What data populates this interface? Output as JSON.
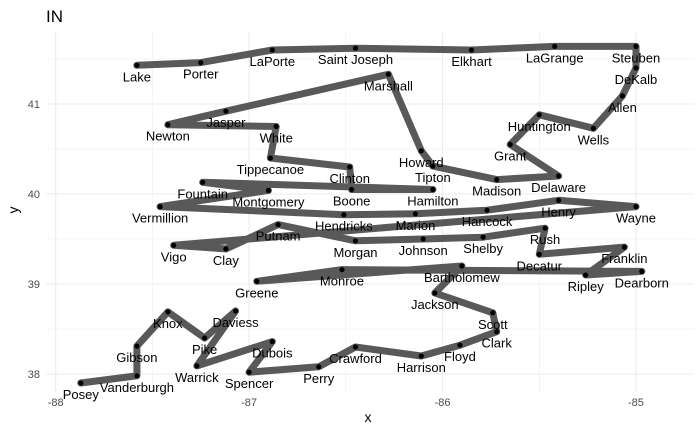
{
  "chart_data": {
    "type": "scatter",
    "title": "IN",
    "xlabel": "x",
    "ylabel": "y",
    "xlim": [
      -88.05,
      -84.7
    ],
    "ylim": [
      37.8,
      41.8
    ],
    "x_ticks": [
      -88,
      -87,
      -86,
      -85
    ],
    "x_tick_labels": [
      "-88",
      "-87",
      "-86",
      "-85"
    ],
    "y_ticks": [
      38,
      39,
      40,
      41
    ],
    "y_tick_labels": [
      "38",
      "39",
      "40",
      "41"
    ],
    "grid": true,
    "colors": {
      "path": "#595959",
      "point": "#000000",
      "grid": "#ebebeb",
      "text": "#000000",
      "tick": "#4d4d4d"
    },
    "points": [
      {
        "name": "Lake",
        "x": -87.58,
        "y": 41.43
      },
      {
        "name": "Porter",
        "x": -87.25,
        "y": 41.46
      },
      {
        "name": "LaPorte",
        "x": -86.88,
        "y": 41.6
      },
      {
        "name": "Saint Joseph",
        "x": -86.45,
        "y": 41.62
      },
      {
        "name": "Elkhart",
        "x": -85.85,
        "y": 41.6
      },
      {
        "name": "LaGrange",
        "x": -85.42,
        "y": 41.64
      },
      {
        "name": "Steuben",
        "x": -85.0,
        "y": 41.64
      },
      {
        "name": "DeKalb",
        "x": -85.0,
        "y": 41.4
      },
      {
        "name": "Allen",
        "x": -85.07,
        "y": 41.09
      },
      {
        "name": "Wells",
        "x": -85.22,
        "y": 40.73
      },
      {
        "name": "Huntington",
        "x": -85.5,
        "y": 40.88
      },
      {
        "name": "Grant",
        "x": -85.65,
        "y": 40.55
      },
      {
        "name": "Delaware",
        "x": -85.4,
        "y": 40.2
      },
      {
        "name": "Madison",
        "x": -85.72,
        "y": 40.16
      },
      {
        "name": "Tipton",
        "x": -86.05,
        "y": 40.31
      },
      {
        "name": "Howard",
        "x": -86.11,
        "y": 40.48
      },
      {
        "name": "Marshall",
        "x": -86.28,
        "y": 41.33
      },
      {
        "name": "Jasper",
        "x": -87.12,
        "y": 40.92
      },
      {
        "name": "Newton",
        "x": -87.42,
        "y": 40.77
      },
      {
        "name": "White",
        "x": -86.86,
        "y": 40.75
      },
      {
        "name": "Tippecanoe",
        "x": -86.89,
        "y": 40.4
      },
      {
        "name": "Clinton",
        "x": -86.48,
        "y": 40.3
      },
      {
        "name": "Boone",
        "x": -86.47,
        "y": 40.05
      },
      {
        "name": "Hamilton",
        "x": -86.05,
        "y": 40.05
      },
      {
        "name": "Fountain",
        "x": -87.24,
        "y": 40.13
      },
      {
        "name": "Montgomery",
        "x": -86.9,
        "y": 40.04
      },
      {
        "name": "Vermillion",
        "x": -87.46,
        "y": 39.86
      },
      {
        "name": "Hendricks",
        "x": -86.51,
        "y": 39.77
      },
      {
        "name": "Marion",
        "x": -86.14,
        "y": 39.78
      },
      {
        "name": "Hancock",
        "x": -85.77,
        "y": 39.82
      },
      {
        "name": "Henry",
        "x": -85.4,
        "y": 39.93
      },
      {
        "name": "Wayne",
        "x": -85.0,
        "y": 39.86
      },
      {
        "name": "Vigo",
        "x": -87.39,
        "y": 39.43
      },
      {
        "name": "Clay",
        "x": -87.12,
        "y": 39.39
      },
      {
        "name": "Putnam",
        "x": -86.85,
        "y": 39.66
      },
      {
        "name": "Morgan",
        "x": -86.45,
        "y": 39.48
      },
      {
        "name": "Johnson",
        "x": -86.1,
        "y": 39.5
      },
      {
        "name": "Shelby",
        "x": -85.79,
        "y": 39.52
      },
      {
        "name": "Rush",
        "x": -85.47,
        "y": 39.62
      },
      {
        "name": "Decatur",
        "x": -85.5,
        "y": 39.33
      },
      {
        "name": "Franklin",
        "x": -85.06,
        "y": 39.41
      },
      {
        "name": "Ripley",
        "x": -85.26,
        "y": 39.1
      },
      {
        "name": "Dearborn",
        "x": -84.97,
        "y": 39.14
      },
      {
        "name": "Monroe",
        "x": -86.52,
        "y": 39.16
      },
      {
        "name": "Greene",
        "x": -86.96,
        "y": 39.03
      },
      {
        "name": "Bartholomew",
        "x": -85.9,
        "y": 39.2
      },
      {
        "name": "Jackson",
        "x": -86.04,
        "y": 38.9
      },
      {
        "name": "Scott",
        "x": -85.74,
        "y": 38.68
      },
      {
        "name": "Clark",
        "x": -85.72,
        "y": 38.47
      },
      {
        "name": "Floyd",
        "x": -85.91,
        "y": 38.32
      },
      {
        "name": "Harrison",
        "x": -86.11,
        "y": 38.2
      },
      {
        "name": "Crawford",
        "x": -86.45,
        "y": 38.3
      },
      {
        "name": "Perry",
        "x": -86.64,
        "y": 38.08
      },
      {
        "name": "Spencer",
        "x": -87.0,
        "y": 38.02
      },
      {
        "name": "Dubois",
        "x": -86.88,
        "y": 38.36
      },
      {
        "name": "Warrick",
        "x": -87.27,
        "y": 38.09
      },
      {
        "name": "Daviess",
        "x": -87.07,
        "y": 38.7
      },
      {
        "name": "Pike",
        "x": -87.23,
        "y": 38.4
      },
      {
        "name": "Knox",
        "x": -87.42,
        "y": 38.69
      },
      {
        "name": "Gibson",
        "x": -87.58,
        "y": 38.31
      },
      {
        "name": "Vanderburgh",
        "x": -87.58,
        "y": 37.98
      },
      {
        "name": "Posey",
        "x": -87.87,
        "y": 37.9
      }
    ]
  }
}
